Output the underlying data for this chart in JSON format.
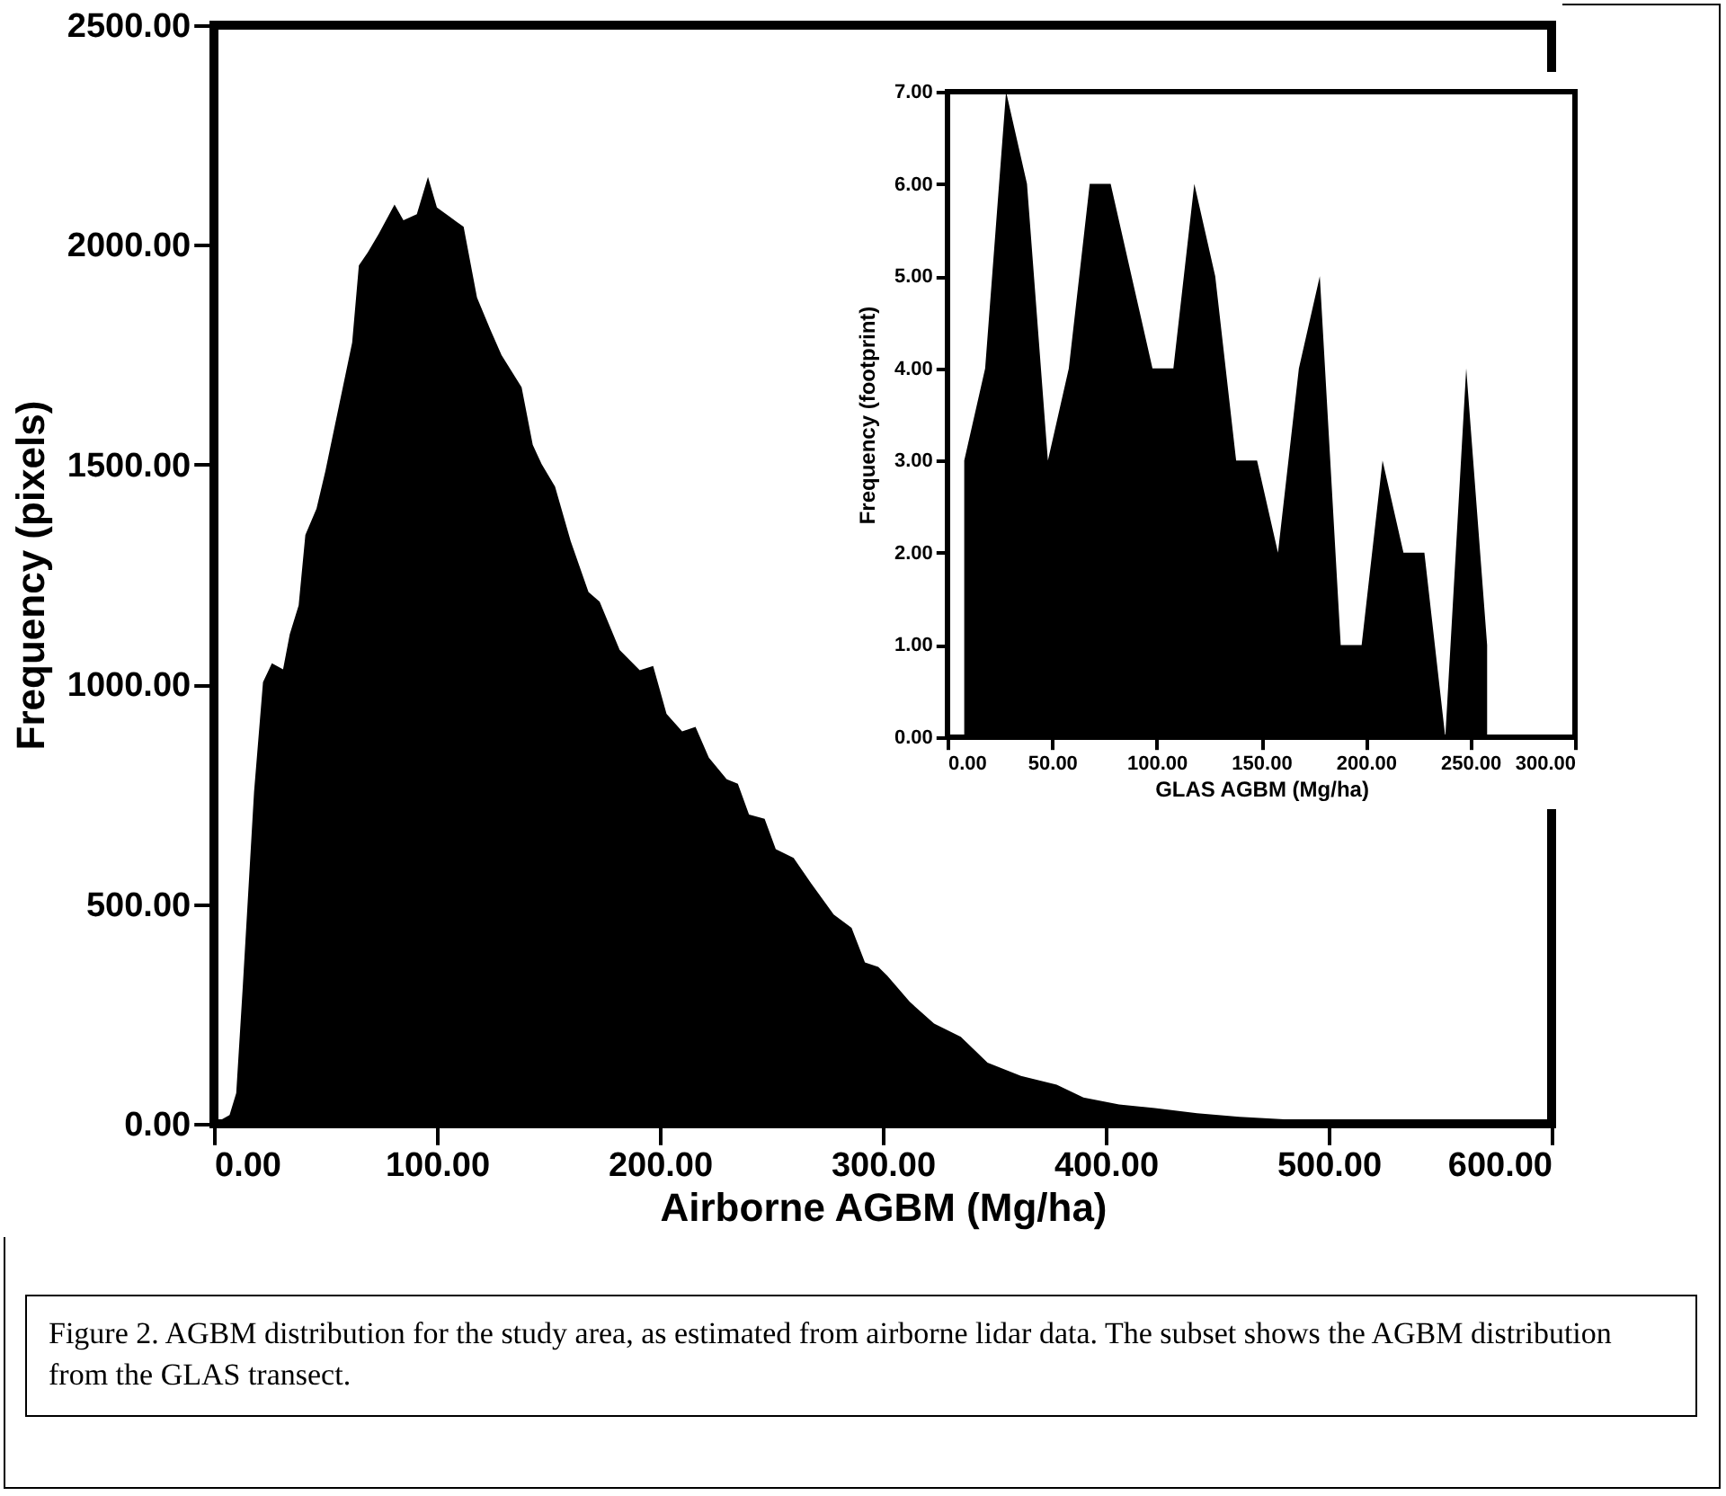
{
  "chart_data": [
    {
      "type": "area",
      "xlabel": "Airborne AGBM (Mg/ha)",
      "ylabel": "Frequency (pixels)",
      "color": "#000000",
      "x": [
        0,
        7,
        10,
        13,
        18,
        22,
        26,
        31,
        34,
        38,
        41,
        46,
        50,
        56,
        62,
        65,
        69,
        74,
        81,
        85,
        91,
        96,
        100,
        106,
        112,
        118,
        124,
        129,
        138,
        143,
        147,
        153,
        160,
        168,
        173,
        182,
        191,
        197,
        203,
        210,
        216,
        222,
        230,
        235,
        240,
        247,
        252,
        260,
        268,
        278,
        286,
        292,
        298,
        302,
        312,
        323,
        335,
        347,
        362,
        378,
        390,
        406,
        422,
        441,
        460,
        480,
        496,
        519,
        600
      ],
      "values": [
        0,
        20,
        70,
        318,
        756,
        1005,
        1048,
        1034,
        1114,
        1180,
        1340,
        1400,
        1486,
        1632,
        1778,
        1953,
        1983,
        2026,
        2092,
        2056,
        2070,
        2155,
        2085,
        2063,
        2041,
        1880,
        1807,
        1749,
        1676,
        1545,
        1501,
        1450,
        1326,
        1210,
        1188,
        1078,
        1032,
        1042,
        933,
        893,
        903,
        833,
        784,
        774,
        704,
        694,
        625,
        605,
        546,
        476,
        446,
        367,
        357,
        337,
        278,
        228,
        198,
        139,
        109,
        89,
        60,
        44,
        36,
        24,
        16,
        10,
        6,
        0,
        0
      ],
      "xlim": [
        0,
        600
      ],
      "ylim": [
        0,
        2500
      ],
      "xticks": [
        {
          "value": 0,
          "label": "0.00"
        },
        {
          "value": 100,
          "label": "100.00"
        },
        {
          "value": 200,
          "label": "200.00"
        },
        {
          "value": 300,
          "label": "300.00"
        },
        {
          "value": 400,
          "label": "400.00"
        },
        {
          "value": 500,
          "label": "500.00"
        },
        {
          "value": 600,
          "label": "600.00"
        }
      ],
      "yticks": [
        {
          "value": 0,
          "label": "0.00"
        },
        {
          "value": 500,
          "label": "500.00"
        },
        {
          "value": 1000,
          "label": "1000.00"
        },
        {
          "value": 1500,
          "label": "1500.00"
        },
        {
          "value": 2000,
          "label": "2000.00"
        },
        {
          "value": 2500,
          "label": "2500.00"
        }
      ],
      "annotations": [
        "Figure 2. AGBM distribution for the study area, as estimated from airborne lidar data. The subset shows the AGBM distribution from the GLAS transect."
      ]
    },
    {
      "type": "area",
      "xlabel": "GLAS AGBM (Mg/ha)",
      "ylabel": "Frequency (footprint)",
      "color": "#000000",
      "x": [
        8,
        18,
        28,
        38,
        48,
        58,
        68,
        78,
        88,
        98,
        108,
        118,
        128,
        138,
        148,
        158,
        168,
        178,
        188,
        198,
        208,
        218,
        228,
        238,
        248,
        258
      ],
      "values": [
        3,
        4,
        7,
        6,
        3,
        4,
        6,
        6,
        5,
        4,
        4,
        6,
        5,
        3,
        3,
        2,
        4,
        5,
        1,
        1,
        3,
        2,
        2,
        0,
        4,
        1
      ],
      "xlim": [
        0,
        300
      ],
      "ylim": [
        0,
        7
      ],
      "xticks": [
        {
          "value": 0,
          "label": "0.00"
        },
        {
          "value": 50,
          "label": "50.00"
        },
        {
          "value": 100,
          "label": "100.00"
        },
        {
          "value": 150,
          "label": "150.00"
        },
        {
          "value": 200,
          "label": "200.00"
        },
        {
          "value": 250,
          "label": "250.00"
        },
        {
          "value": 300,
          "label": "300.00"
        }
      ],
      "yticks": [
        {
          "value": 0,
          "label": "0.00"
        },
        {
          "value": 1,
          "label": "1.00"
        },
        {
          "value": 2,
          "label": "2.00"
        },
        {
          "value": 3,
          "label": "3.00"
        },
        {
          "value": 4,
          "label": "4.00"
        },
        {
          "value": 5,
          "label": "5.00"
        },
        {
          "value": 6,
          "label": "6.00"
        },
        {
          "value": 7,
          "label": "7.00"
        }
      ]
    }
  ]
}
